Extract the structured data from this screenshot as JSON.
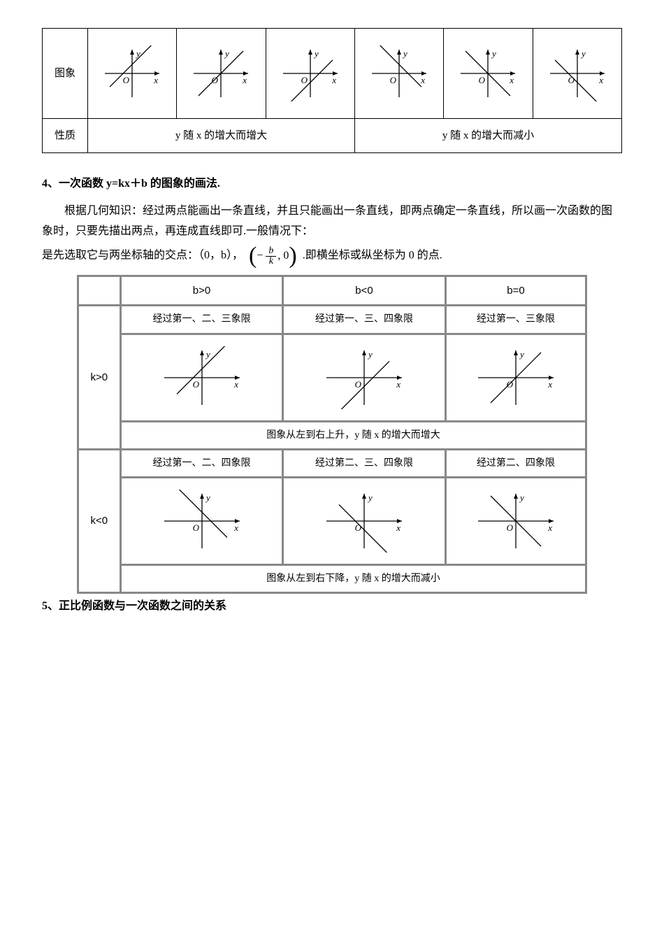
{
  "outerTable": {
    "rowLabels": [
      "图象",
      "性质"
    ],
    "propLeft": "y 随 x 的增大而增大",
    "propRight": "y 随 x 的增大而减小",
    "axis": {
      "x": "x",
      "y": "y",
      "o": "O"
    },
    "graphs": [
      {
        "slope": 1,
        "intercept": 0.4
      },
      {
        "slope": 1,
        "intercept": 0
      },
      {
        "slope": 1,
        "intercept": -0.4
      },
      {
        "slope": -1,
        "intercept": 0.4
      },
      {
        "slope": -1,
        "intercept": 0
      },
      {
        "slope": -1,
        "intercept": -0.4
      }
    ]
  },
  "section4": {
    "title": "4、一次函数 y=kx＋b 的图象的画法.",
    "para1": "根据几何知识：经过两点能画出一条直线，并且只能画出一条直线，即两点确定一条直线，所以画一次函数的图象时，只要先描出两点，再连成直线即可.一般情况下：",
    "para2a": "是先选取它与两坐标轴的交点：（0，b），",
    "para2b": ".即横坐标或纵坐标为 0 的点.",
    "frac": {
      "num": "b",
      "den": "k"
    }
  },
  "innerTable": {
    "colHeaders": [
      "b>0",
      "b<0",
      "b=0"
    ],
    "rows": [
      {
        "k": "k>0",
        "quads": [
          "经过第一、二、三象限",
          "经过第一、三、四象限",
          "经过第一、三象限"
        ],
        "graphs": [
          {
            "slope": 1,
            "intercept": 0.35
          },
          {
            "slope": 1,
            "intercept": -0.35
          },
          {
            "slope": 1,
            "intercept": 0
          }
        ],
        "trend": "图象从左到右上升，y 随 x 的增大而增大"
      },
      {
        "k": "k<0",
        "quads": [
          "经过第一、二、四象限",
          "经过第二、三、四象限",
          "经过第二、四象限"
        ],
        "graphs": [
          {
            "slope": -1,
            "intercept": 0.35
          },
          {
            "slope": -1,
            "intercept": -0.35
          },
          {
            "slope": -1,
            "intercept": 0
          }
        ],
        "trend": "图象从左到右下降，y 随 x 的增大而减小"
      }
    ],
    "axis": {
      "x": "x",
      "y": "y",
      "o": "O"
    }
  },
  "section5": {
    "title": "5、正比例函数与一次函数之间的关系"
  },
  "style": {
    "axisColor": "#000000",
    "lineColor": "#000000",
    "lineWidth": 1.3,
    "axisWidth": 1.3
  }
}
